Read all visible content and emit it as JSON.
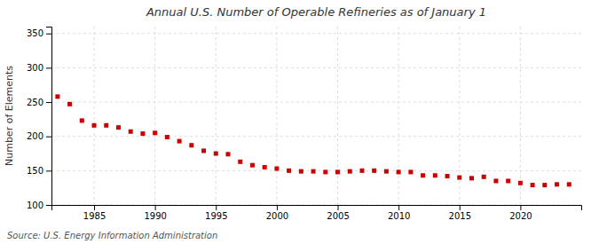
{
  "chart_data": {
    "type": "scatter",
    "title": "Annual U.S. Number of Operable Refineries as of January 1",
    "ylabel": "Number of Elements",
    "source": "Source: U.S. Energy Information Administration",
    "color": "#cc0000",
    "marker": "square",
    "grid": true,
    "xlim": [
      1981.5,
      2025
    ],
    "xticks": [
      1985,
      1990,
      1995,
      2000,
      2005,
      2010,
      2015,
      2020
    ],
    "ylim": [
      100,
      360
    ],
    "yticks": [
      100,
      150,
      200,
      250,
      300,
      350
    ],
    "x": [
      1982,
      1983,
      1984,
      1985,
      1986,
      1987,
      1988,
      1989,
      1990,
      1991,
      1992,
      1993,
      1994,
      1995,
      1996,
      1997,
      1998,
      1999,
      2000,
      2001,
      2002,
      2003,
      2004,
      2005,
      2006,
      2007,
      2008,
      2009,
      2010,
      2011,
      2012,
      2013,
      2014,
      2015,
      2016,
      2017,
      2018,
      2019,
      2020,
      2021,
      2022,
      2023,
      2024
    ],
    "values": [
      258,
      247,
      223,
      216,
      216,
      213,
      207,
      204,
      205,
      199,
      193,
      187,
      179,
      175,
      174,
      163,
      158,
      155,
      153,
      150,
      149,
      149,
      148,
      148,
      149,
      150,
      150,
      149,
      148,
      148,
      143,
      143,
      142,
      140,
      139,
      141,
      135,
      135,
      132,
      129,
      129,
      130,
      130
    ]
  }
}
